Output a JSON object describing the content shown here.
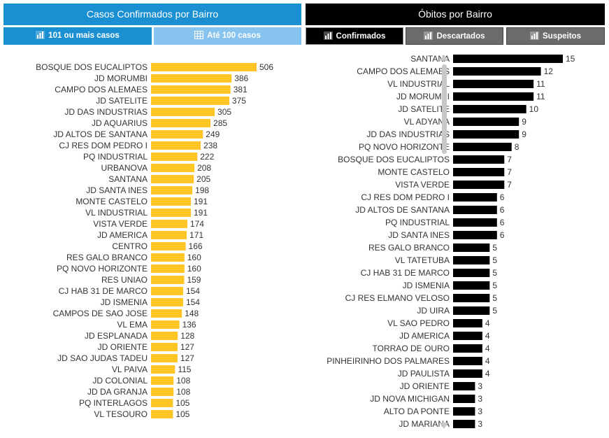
{
  "header": {
    "left_title": "Casos Confirmados por Bairro",
    "right_title": "Óbitos por Bairro"
  },
  "tabs": {
    "left": [
      {
        "label": "101 ou mais casos",
        "icon": "bar-chart-icon",
        "active": true
      },
      {
        "label": "Até 100 casos",
        "icon": "table-icon",
        "active": false
      }
    ],
    "right": [
      {
        "label": "Confirmados",
        "icon": "bar-chart-icon",
        "active": true
      },
      {
        "label": "Descartados",
        "icon": "bar-chart-icon",
        "active": false
      },
      {
        "label": "Suspeitos",
        "icon": "bar-chart-icon",
        "active": false
      }
    ]
  },
  "colors": {
    "confirmed_bar": "#fec524",
    "deaths_bar": "#000000",
    "header_blue": "#1a8fd1",
    "tab_light_blue": "#86c3ee",
    "tab_gray": "#6b6b6b"
  },
  "chart_data": [
    {
      "type": "bar",
      "orientation": "horizontal",
      "categories": [
        "BOSQUE DOS EUCALIPTOS",
        "JD MORUMBI",
        "CAMPO DOS ALEMAES",
        "JD SATELITE",
        "JD DAS INDUSTRIAS",
        "JD AQUARIUS",
        "JD ALTOS DE SANTANA",
        "CJ RES DOM PEDRO I",
        "PQ INDUSTRIAL",
        "URBANOVA",
        "SANTANA",
        "JD SANTA INES",
        "MONTE CASTELO",
        "VL INDUSTRIAL",
        "VISTA VERDE",
        "JD AMERICA",
        "CENTRO",
        "RES GALO BRANCO",
        "PQ NOVO HORIZONTE",
        "RES UNIAO",
        "CJ HAB 31 DE MARCO",
        "JD ISMENIA",
        "CAMPOS DE SAO JOSE",
        "VL EMA",
        "JD ESPLANADA",
        "JD ORIENTE",
        "JD SAO JUDAS TADEU",
        "VL PAIVA",
        "JD COLONIAL",
        "JD DA GRANJA",
        "PQ INTERLAGOS",
        "VL TESOURO"
      ],
      "values": [
        506,
        386,
        381,
        375,
        305,
        285,
        249,
        238,
        222,
        208,
        205,
        198,
        191,
        191,
        174,
        171,
        166,
        160,
        160,
        159,
        154,
        154,
        148,
        136,
        128,
        127,
        127,
        115,
        108,
        108,
        105,
        105
      ],
      "data_labels": true
    },
    {
      "type": "bar",
      "orientation": "horizontal",
      "categories": [
        "SANTANA",
        "CAMPO DOS ALEMAES",
        "VL INDUSTRIAL",
        "JD MORUMBI",
        "JD SATELITE",
        "VL ADYANA",
        "JD DAS INDUSTRIAS",
        "PQ NOVO HORIZONTE",
        "BOSQUE DOS EUCALIPTOS",
        "MONTE CASTELO",
        "VISTA VERDE",
        "CJ RES DOM PEDRO I",
        "JD ALTOS DE SANTANA",
        "PQ INDUSTRIAL",
        "JD SANTA INES",
        "RES GALO BRANCO",
        "VL TATETUBA",
        "CJ HAB 31 DE MARCO",
        "JD ISMENIA",
        "CJ RES ELMANO VELOSO",
        "JD UIRA",
        "VL SAO PEDRO",
        "JD AMERICA",
        "TORRAO DE OURO",
        "PINHEIRINHO DOS PALMARES",
        "JD PAULISTA",
        "JD ORIENTE",
        "JD NOVA MICHIGAN",
        "ALTO DA PONTE",
        "JD MARIANA"
      ],
      "values": [
        15,
        12,
        11,
        11,
        10,
        9,
        9,
        8,
        7,
        7,
        7,
        6,
        6,
        6,
        6,
        5,
        5,
        5,
        5,
        5,
        5,
        4,
        4,
        4,
        4,
        4,
        3,
        3,
        3,
        3
      ],
      "data_labels": true
    }
  ]
}
